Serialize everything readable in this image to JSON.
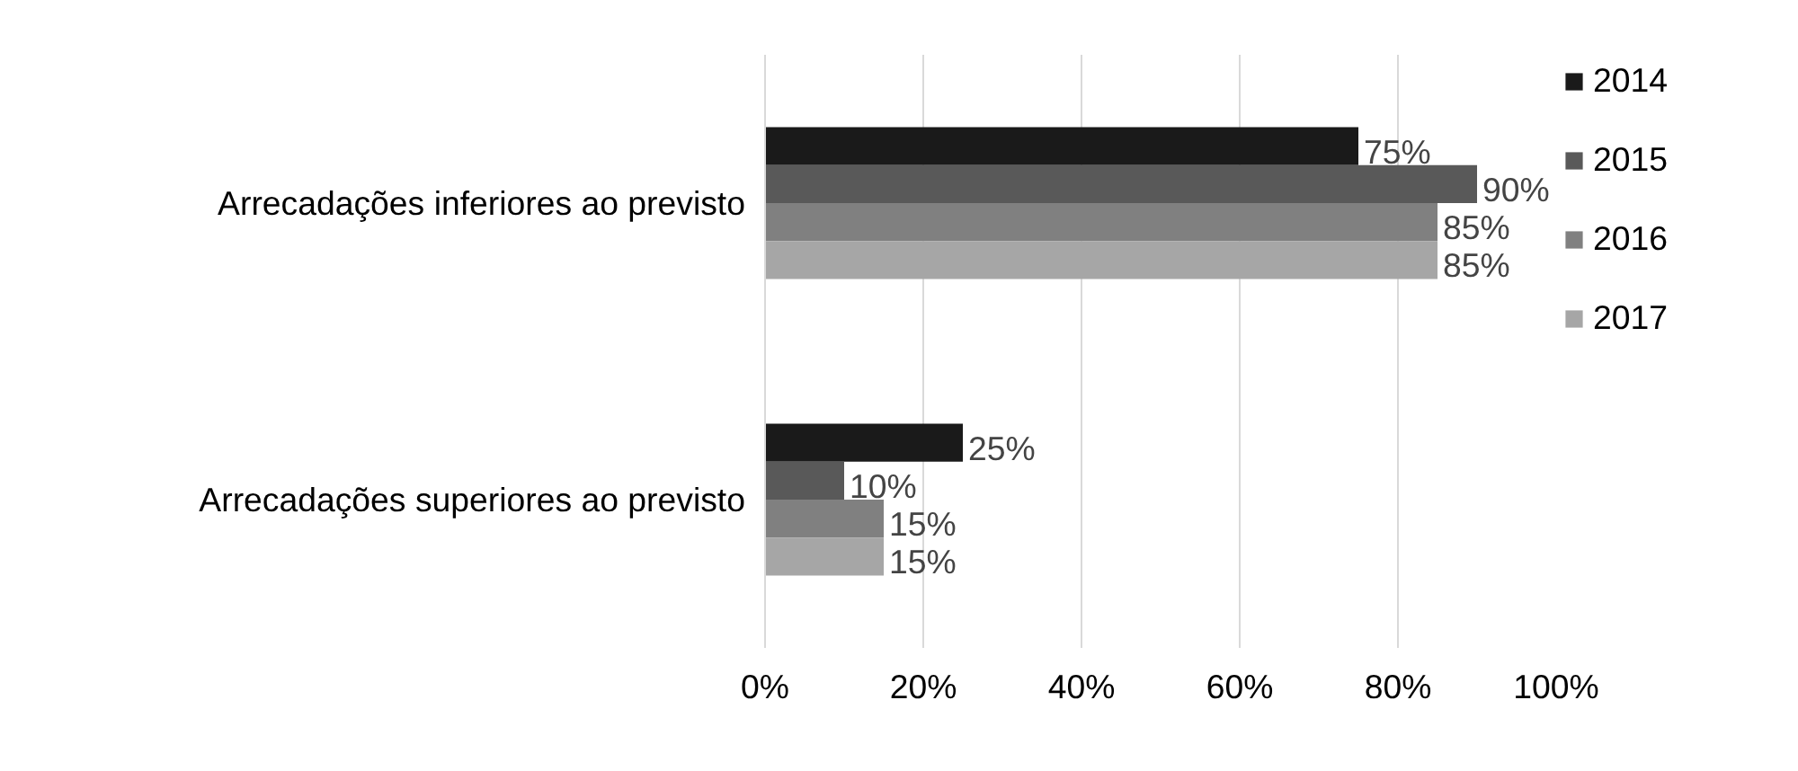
{
  "chart_data": {
    "type": "bar",
    "orientation": "horizontal",
    "categories": [
      "Arrecadações inferiores ao previsto",
      "Arrecadações superiores ao previsto"
    ],
    "series": [
      {
        "name": "2014",
        "color": "#1a1a1a",
        "values": [
          75,
          25
        ],
        "value_labels": [
          "75%",
          "25%"
        ]
      },
      {
        "name": "2015",
        "color": "#595959",
        "values": [
          90,
          10
        ],
        "value_labels": [
          "90%",
          "10%"
        ]
      },
      {
        "name": "2016",
        "color": "#808080",
        "values": [
          85,
          15
        ],
        "value_labels": [
          "85%",
          "15%"
        ]
      },
      {
        "name": "2017",
        "color": "#a6a6a6",
        "values": [
          85,
          15
        ],
        "value_labels": [
          "85%",
          "15%"
        ]
      }
    ],
    "xlim": [
      0,
      100
    ],
    "xticks": [
      {
        "value": 0,
        "label": "0%"
      },
      {
        "value": 20,
        "label": "20%"
      },
      {
        "value": 40,
        "label": "40%"
      },
      {
        "value": 60,
        "label": "60%"
      },
      {
        "value": 80,
        "label": "80%"
      },
      {
        "value": 100,
        "label": "100%"
      }
    ],
    "grid": "x",
    "legend": "right"
  }
}
